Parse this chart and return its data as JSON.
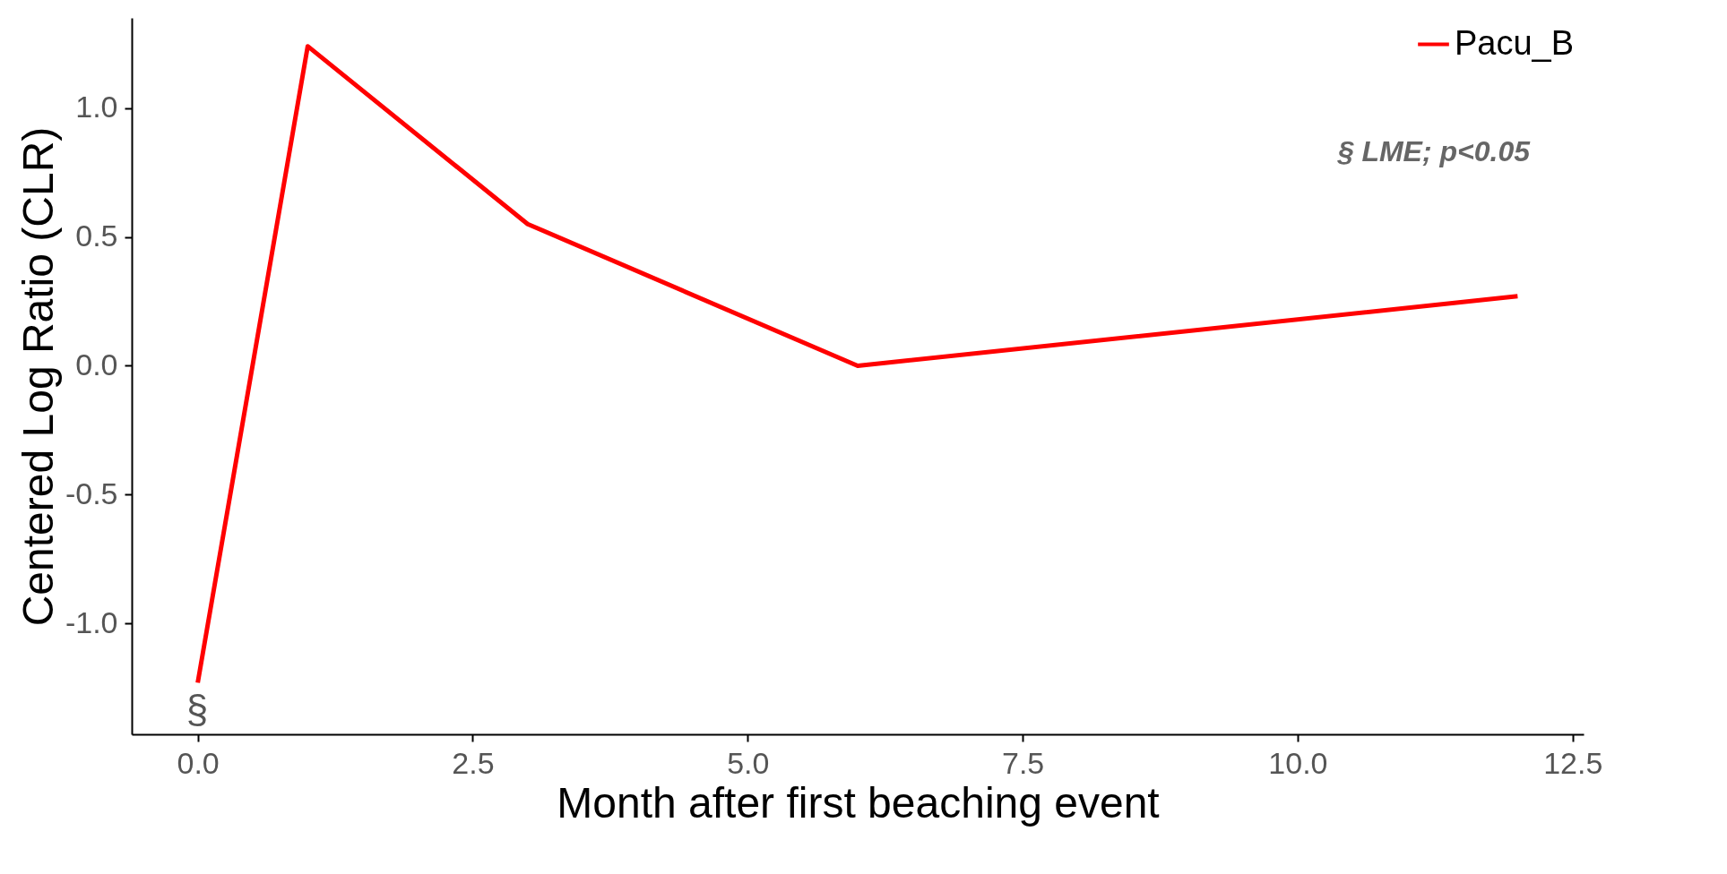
{
  "chart_data": {
    "type": "line",
    "xlabel": "Month after first beaching event",
    "ylabel": "Centered Log Ratio (CLR)",
    "x": [
      0,
      1,
      3,
      6,
      12
    ],
    "series": [
      {
        "name": "Pacu_B",
        "color": "#ff0000",
        "values": [
          -1.23,
          1.24,
          0.55,
          0.0,
          0.27
        ]
      }
    ],
    "xlim": [
      -0.6,
      12.6
    ],
    "xticks": [
      {
        "value": 0,
        "label": "0.0"
      },
      2.5,
      {
        "value": 5,
        "label": "5.0"
      },
      7.5,
      {
        "value": 10,
        "label": "10.0"
      },
      12.5
    ],
    "ylim": [
      -1.43,
      1.35
    ],
    "yticks": [
      {
        "value": -1,
        "label": "-1.0"
      },
      -0.5,
      {
        "value": 0,
        "label": "0.0"
      },
      0.5,
      {
        "value": 1,
        "label": "1.0"
      }
    ],
    "annotations": [
      "§ LME; p<0.05",
      "§"
    ],
    "legend": "top right",
    "grid": false,
    "marker": "none",
    "line_style": "solid"
  }
}
